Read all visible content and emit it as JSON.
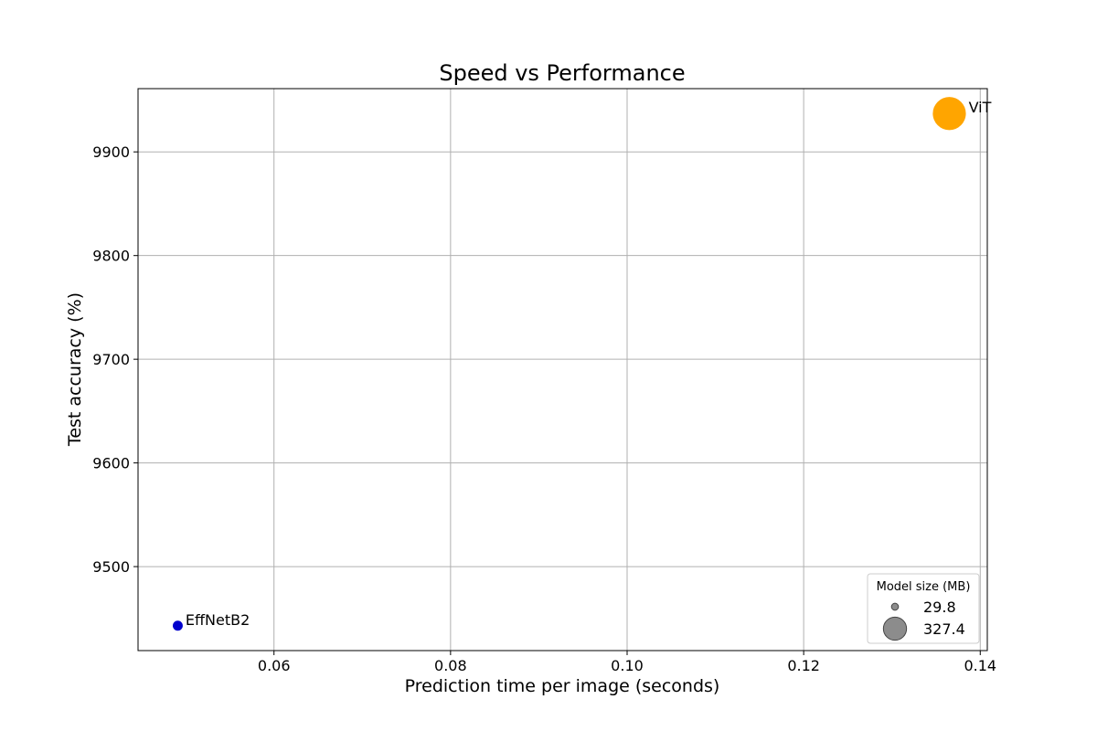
{
  "chart_data": {
    "type": "scatter",
    "title": "Speed vs Performance",
    "xlabel": "Prediction time per image (seconds)",
    "ylabel": "Test accuracy (%)",
    "xlim": [
      0.0446,
      0.1408
    ],
    "ylim": [
      9419,
      9961
    ],
    "x_ticks": [
      0.06,
      0.08,
      0.1,
      0.12,
      0.14
    ],
    "x_tick_labels": [
      "0.06",
      "0.08",
      "0.10",
      "0.12",
      "0.14"
    ],
    "y_ticks": [
      9500,
      9600,
      9700,
      9800,
      9900
    ],
    "y_tick_labels": [
      "9500",
      "9600",
      "9700",
      "9800",
      "9900"
    ],
    "grid": true,
    "points": [
      {
        "label": "EffNetB2",
        "x": 0.0491,
        "y": 9443,
        "size_mb": 29.8,
        "color": "#0000cd"
      },
      {
        "label": "ViT",
        "x": 0.1365,
        "y": 9937,
        "size_mb": 327.4,
        "color": "#ffa500"
      }
    ],
    "legend": {
      "title": "Model size (MB)",
      "placement": "lower-right",
      "entries": [
        {
          "label": "29.8",
          "size_mb": 29.8,
          "color": "#808080"
        },
        {
          "label": "327.4",
          "size_mb": 327.4,
          "color": "#808080"
        }
      ]
    }
  }
}
